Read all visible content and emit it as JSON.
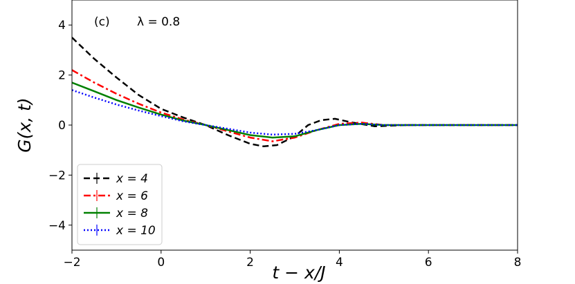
{
  "chart_data": {
    "type": "line",
    "panel_label": "(c)",
    "annotation": "λ = 0.8",
    "xlabel": "t − x/J",
    "ylabel": "G(x, t)",
    "xlim": [
      -2,
      8
    ],
    "ylim": [
      -5,
      5
    ],
    "xticks": [
      -2,
      0,
      2,
      4,
      6,
      8
    ],
    "yticks": [
      -4,
      -2,
      0,
      2,
      4
    ],
    "xtick_labels": [
      "−2",
      "0",
      "2",
      "4",
      "6",
      "8"
    ],
    "ytick_labels": [
      "−4",
      "−2",
      "0",
      "2",
      "4"
    ],
    "grid": false,
    "legend_position": "lower-left",
    "series": [
      {
        "name": "x = 4",
        "color": "#000000",
        "style": "dashed",
        "x": [
          -2,
          -1.5,
          -1,
          -0.5,
          0,
          0.5,
          1,
          1.5,
          2,
          2.3,
          2.6,
          3,
          3.3,
          3.6,
          3.9,
          4.3,
          4.8,
          5.5,
          6,
          6.5,
          7,
          7.5,
          8
        ],
        "y": [
          3.5,
          2.65,
          1.9,
          1.2,
          0.65,
          0.3,
          0.0,
          -0.4,
          -0.75,
          -0.85,
          -0.8,
          -0.45,
          0.0,
          0.2,
          0.25,
          0.1,
          -0.05,
          0.0,
          0.0,
          0.0,
          0.0,
          0.0,
          0.0
        ]
      },
      {
        "name": "x = 6",
        "color": "#ff0000",
        "style": "dashdot",
        "x": [
          -2,
          -1.5,
          -1,
          -0.5,
          0,
          0.5,
          1,
          1.5,
          2,
          2.5,
          3,
          3.5,
          4,
          4.5,
          5,
          6,
          7,
          8
        ],
        "y": [
          2.2,
          1.7,
          1.25,
          0.85,
          0.5,
          0.22,
          0.0,
          -0.25,
          -0.5,
          -0.65,
          -0.5,
          -0.2,
          0.05,
          0.1,
          0.0,
          0.0,
          0.0,
          0.0
        ]
      },
      {
        "name": "x = 8",
        "color": "#008000",
        "style": "solid",
        "x": [
          -2,
          -1.5,
          -1,
          -0.5,
          0,
          0.5,
          1,
          1.5,
          2,
          2.5,
          3,
          3.5,
          4,
          4.5,
          5,
          6,
          7,
          8
        ],
        "y": [
          1.7,
          1.35,
          1.0,
          0.7,
          0.42,
          0.18,
          0.0,
          -0.2,
          -0.4,
          -0.5,
          -0.45,
          -0.2,
          0.0,
          0.05,
          0.0,
          0.0,
          0.0,
          0.0
        ]
      },
      {
        "name": "x = 10",
        "color": "#0000ff",
        "style": "dotted",
        "x": [
          -2,
          -1.5,
          -1,
          -0.5,
          0,
          0.5,
          1,
          1.5,
          2,
          2.5,
          3,
          3.5,
          4,
          4.5,
          5,
          6,
          7,
          8
        ],
        "y": [
          1.4,
          1.1,
          0.82,
          0.58,
          0.36,
          0.15,
          0.0,
          -0.15,
          -0.3,
          -0.38,
          -0.35,
          -0.2,
          0.0,
          0.05,
          0.0,
          0.0,
          0.0,
          0.0
        ]
      }
    ]
  }
}
